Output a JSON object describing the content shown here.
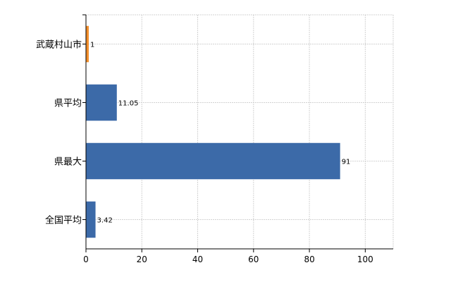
{
  "chart_data": {
    "type": "bar",
    "orientation": "horizontal",
    "categories": [
      "武蔵村山市",
      "県平均",
      "県最大",
      "全国平均"
    ],
    "values": [
      1,
      11.05,
      91,
      3.42
    ],
    "value_labels": [
      "1",
      "11.05",
      "91",
      "3.42"
    ],
    "bar_colors": [
      "#f28e2b",
      "#3c6aa8",
      "#3c6aa8",
      "#3c6aa8"
    ],
    "xlim": [
      0,
      110
    ],
    "xticks": [
      0,
      20,
      40,
      60,
      80,
      100
    ],
    "xtick_labels": [
      "0",
      "20",
      "40",
      "60",
      "80",
      "100"
    ],
    "grid": true,
    "title": "",
    "xlabel": "",
    "ylabel": ""
  }
}
